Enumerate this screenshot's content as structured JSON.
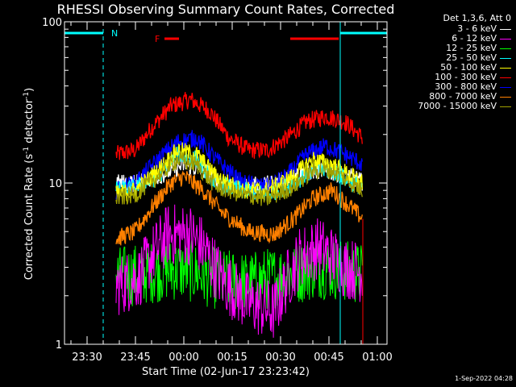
{
  "chart_data": {
    "type": "line",
    "title": "RHESSI Observing Summary Count Rates, Corrected",
    "xlabel": "Start Time (02-Jun-17 23:23:42)",
    "ylabel_main": "Corrected Count Rate (s",
    "ylabel_exp1": "-1",
    "ylabel_mid": " detector",
    "ylabel_exp2": "-1",
    "ylabel_end": ")",
    "y_scale": "log",
    "ylim": [
      1,
      100
    ],
    "y_ticks": [
      {
        "value": 1,
        "label": "1"
      },
      {
        "value": 10,
        "label": "10"
      },
      {
        "value": 100,
        "label": "100"
      }
    ],
    "xlim_minutes_after_2330": [
      -7,
      93
    ],
    "x_ticks": [
      {
        "t": 0,
        "label": "23:30"
      },
      {
        "t": 15,
        "label": "23:45"
      },
      {
        "t": 30,
        "label": "00:00"
      },
      {
        "t": 45,
        "label": "00:15"
      },
      {
        "t": 60,
        "label": "00:30"
      },
      {
        "t": 75,
        "label": "00:45"
      },
      {
        "t": 90,
        "label": "01:00"
      }
    ],
    "data_interval": [
      9,
      85.5
    ],
    "legend_header": "Det 1,3,6, Att 0",
    "series": [
      {
        "name": "3 - 6 keV",
        "color": "#ffffff",
        "profile": [
          [
            9,
            10
          ],
          [
            15,
            10
          ],
          [
            22,
            11
          ],
          [
            30,
            13
          ],
          [
            36,
            12
          ],
          [
            42,
            10
          ],
          [
            50,
            9.5
          ],
          [
            58,
            10
          ],
          [
            66,
            11.5
          ],
          [
            72,
            12
          ],
          [
            78,
            11.5
          ],
          [
            84,
            10.5
          ],
          [
            85.5,
            10
          ]
        ]
      },
      {
        "name": "6 - 12 keV",
        "color": "#ff00ff",
        "profile": [
          [
            9,
            2.3
          ],
          [
            16,
            2.6
          ],
          [
            20,
            3.5
          ],
          [
            25,
            4.8
          ],
          [
            32,
            4.8
          ],
          [
            36,
            4
          ],
          [
            42,
            2.5
          ],
          [
            50,
            1.8
          ],
          [
            58,
            1.6
          ],
          [
            62,
            2.5
          ],
          [
            66,
            3.5
          ],
          [
            72,
            4
          ],
          [
            76,
            3.5
          ],
          [
            80,
            3
          ],
          [
            85.5,
            2.8
          ]
        ]
      },
      {
        "name": "12 - 25 keV",
        "color": "#00ff00",
        "profile": [
          [
            9,
            2.6
          ],
          [
            15,
            2.7
          ],
          [
            20,
            2.8
          ],
          [
            25,
            2.9
          ],
          [
            30,
            2.9
          ],
          [
            36,
            2.7
          ],
          [
            42,
            2.5
          ],
          [
            50,
            2.4
          ],
          [
            58,
            2.6
          ],
          [
            66,
            2.8
          ],
          [
            72,
            3
          ],
          [
            78,
            2.9
          ],
          [
            85.5,
            2.7
          ]
        ]
      },
      {
        "name": "25 - 50 keV",
        "color": "#00ffff",
        "profile": [
          [
            9,
            9
          ],
          [
            15,
            9.3
          ],
          [
            22,
            11
          ],
          [
            28,
            15
          ],
          [
            34,
            14
          ],
          [
            40,
            10
          ],
          [
            48,
            9
          ],
          [
            56,
            8.5
          ],
          [
            64,
            10
          ],
          [
            70,
            12
          ],
          [
            76,
            12
          ],
          [
            82,
            10
          ],
          [
            85.5,
            9.5
          ]
        ]
      },
      {
        "name": "50 - 100 keV",
        "color": "#ffff00",
        "profile": [
          [
            9,
            8.5
          ],
          [
            15,
            9
          ],
          [
            22,
            12
          ],
          [
            28,
            16
          ],
          [
            34,
            15
          ],
          [
            40,
            11
          ],
          [
            48,
            9
          ],
          [
            56,
            9
          ],
          [
            64,
            11
          ],
          [
            70,
            14
          ],
          [
            76,
            13
          ],
          [
            82,
            11
          ],
          [
            85.5,
            10
          ]
        ]
      },
      {
        "name": "100 - 300 keV",
        "color": "#ff0000",
        "profile": [
          [
            9,
            15
          ],
          [
            15,
            16
          ],
          [
            20,
            22
          ],
          [
            26,
            30
          ],
          [
            32,
            33
          ],
          [
            38,
            28
          ],
          [
            44,
            19
          ],
          [
            50,
            16
          ],
          [
            56,
            16
          ],
          [
            62,
            19
          ],
          [
            68,
            24
          ],
          [
            74,
            26
          ],
          [
            80,
            24
          ],
          [
            85.5,
            19
          ]
        ]
      },
      {
        "name": "300 - 800 keV",
        "color": "#0000ff",
        "profile": [
          [
            9,
            9
          ],
          [
            15,
            10
          ],
          [
            22,
            14
          ],
          [
            28,
            18
          ],
          [
            34,
            19
          ],
          [
            40,
            14
          ],
          [
            48,
            10
          ],
          [
            56,
            9.5
          ],
          [
            62,
            11
          ],
          [
            68,
            15
          ],
          [
            74,
            17
          ],
          [
            80,
            15
          ],
          [
            85.5,
            13
          ]
        ]
      },
      {
        "name": "800 - 7000 keV",
        "color": "#ff8000",
        "profile": [
          [
            9,
            4.5
          ],
          [
            15,
            5
          ],
          [
            20,
            7
          ],
          [
            26,
            10
          ],
          [
            30,
            11
          ],
          [
            36,
            9
          ],
          [
            42,
            6.5
          ],
          [
            50,
            5
          ],
          [
            58,
            4.8
          ],
          [
            64,
            6
          ],
          [
            70,
            8
          ],
          [
            76,
            9
          ],
          [
            82,
            7
          ],
          [
            85.5,
            6
          ]
        ]
      },
      {
        "name": "7000 - 15000 keV",
        "color": "#a0a000",
        "profile": [
          [
            9,
            8
          ],
          [
            15,
            8.5
          ],
          [
            22,
            11
          ],
          [
            28,
            14
          ],
          [
            34,
            13
          ],
          [
            40,
            9.5
          ],
          [
            48,
            8.5
          ],
          [
            56,
            8
          ],
          [
            64,
            9.5
          ],
          [
            70,
            12
          ],
          [
            76,
            12
          ],
          [
            82,
            10
          ],
          [
            85.5,
            9
          ]
        ]
      }
    ],
    "overlay_flags": [
      {
        "label": "N",
        "color": "#00ffff",
        "segments": [
          [
            -7,
            5
          ],
          [
            78.5,
            93
          ]
        ],
        "dashed_markers": [
          5,
          93
        ],
        "solid_markers": [
          -7,
          78.5
        ],
        "label_at": 7.5
      },
      {
        "label": "F",
        "color": "#ff0000",
        "segments": [
          [
            24,
            28.5
          ],
          [
            63,
            78
          ]
        ],
        "label_at": 21
      }
    ],
    "stamp": "1-Sep-2022 04:28"
  }
}
